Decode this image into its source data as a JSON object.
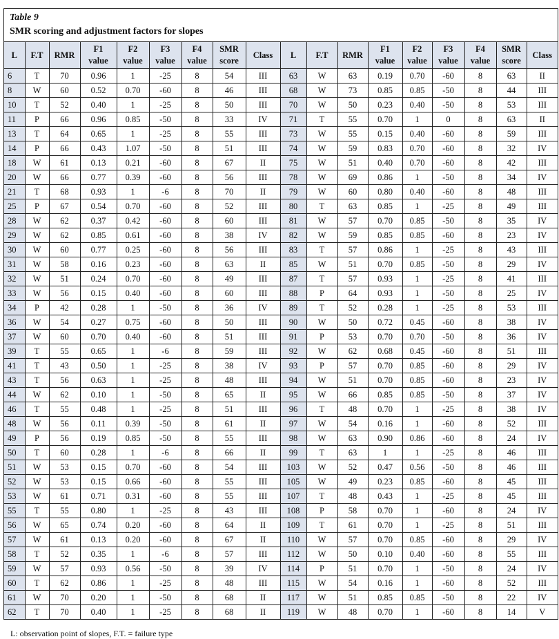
{
  "table": {
    "label": "Table 9",
    "caption": "SMR scoring and adjustment factors for slopes",
    "headers": [
      [
        "L"
      ],
      [
        "F.T"
      ],
      [
        "RMR"
      ],
      [
        "F1",
        "value"
      ],
      [
        "F2",
        "value"
      ],
      [
        "F3",
        "value"
      ],
      [
        "F4",
        "value"
      ],
      [
        "SMR",
        "score"
      ],
      [
        "Class"
      ],
      [
        "L"
      ],
      [
        "F.T"
      ],
      [
        "RMR"
      ],
      [
        "F1",
        "value"
      ],
      [
        "F2",
        "value"
      ],
      [
        "F3",
        "value"
      ],
      [
        "F4",
        "value"
      ],
      [
        "SMR",
        "score"
      ],
      [
        "Class"
      ]
    ],
    "rows": [
      [
        "6",
        "T",
        "70",
        "0.96",
        "1",
        "-25",
        "8",
        "54",
        "III",
        "63",
        "W",
        "63",
        "0.19",
        "0.70",
        "-60",
        "8",
        "63",
        "II"
      ],
      [
        "8",
        "W",
        "60",
        "0.52",
        "0.70",
        "-60",
        "8",
        "46",
        "III",
        "68",
        "W",
        "73",
        "0.85",
        "0.85",
        "-50",
        "8",
        "44",
        "III"
      ],
      [
        "10",
        "T",
        "52",
        "0.40",
        "1",
        "-25",
        "8",
        "50",
        "III",
        "70",
        "W",
        "50",
        "0.23",
        "0.40",
        "-50",
        "8",
        "53",
        "III"
      ],
      [
        "11",
        "P",
        "66",
        "0.96",
        "0.85",
        "-50",
        "8",
        "33",
        "IV",
        "71",
        "T",
        "55",
        "0.70",
        "1",
        "0",
        "8",
        "63",
        "II"
      ],
      [
        "13",
        "T",
        "64",
        "0.65",
        "1",
        "-25",
        "8",
        "55",
        "III",
        "73",
        "W",
        "55",
        "0.15",
        "0.40",
        "-60",
        "8",
        "59",
        "III"
      ],
      [
        "14",
        "P",
        "66",
        "0.43",
        "1.07",
        "-50",
        "8",
        "51",
        "III",
        "74",
        "W",
        "59",
        "0.83",
        "0.70",
        "-60",
        "8",
        "32",
        "IV"
      ],
      [
        "18",
        "W",
        "61",
        "0.13",
        "0.21",
        "-60",
        "8",
        "67",
        "II",
        "75",
        "W",
        "51",
        "0.40",
        "0.70",
        "-60",
        "8",
        "42",
        "III"
      ],
      [
        "20",
        "W",
        "66",
        "0.77",
        "0.39",
        "-60",
        "8",
        "56",
        "III",
        "78",
        "W",
        "69",
        "0.86",
        "1",
        "-50",
        "8",
        "34",
        "IV"
      ],
      [
        "21",
        "T",
        "68",
        "0.93",
        "1",
        "-6",
        "8",
        "70",
        "II",
        "79",
        "W",
        "60",
        "0.80",
        "0.40",
        "-60",
        "8",
        "48",
        "III"
      ],
      [
        "25",
        "P",
        "67",
        "0.54",
        "0.70",
        "-60",
        "8",
        "52",
        "III",
        "80",
        "T",
        "63",
        "0.85",
        "1",
        "-25",
        "8",
        "49",
        "III"
      ],
      [
        "28",
        "W",
        "62",
        "0.37",
        "0.42",
        "-60",
        "8",
        "60",
        "III",
        "81",
        "W",
        "57",
        "0.70",
        "0.85",
        "-50",
        "8",
        "35",
        "IV"
      ],
      [
        "29",
        "W",
        "62",
        "0.85",
        "0.61",
        "-60",
        "8",
        "38",
        "IV",
        "82",
        "W",
        "59",
        "0.85",
        "0.85",
        "-60",
        "8",
        "23",
        "IV"
      ],
      [
        "30",
        "W",
        "60",
        "0.77",
        "0.25",
        "-60",
        "8",
        "56",
        "III",
        "83",
        "T",
        "57",
        "0.86",
        "1",
        "-25",
        "8",
        "43",
        "III"
      ],
      [
        "31",
        "W",
        "58",
        "0.16",
        "0.23",
        "-60",
        "8",
        "63",
        "II",
        "85",
        "W",
        "51",
        "0.70",
        "0.85",
        "-50",
        "8",
        "29",
        "IV"
      ],
      [
        "32",
        "W",
        "51",
        "0.24",
        "0.70",
        "-60",
        "8",
        "49",
        "III",
        "87",
        "T",
        "57",
        "0.93",
        "1",
        "-25",
        "8",
        "41",
        "III"
      ],
      [
        "33",
        "W",
        "56",
        "0.15",
        "0.40",
        "-60",
        "8",
        "60",
        "III",
        "88",
        "P",
        "64",
        "0.93",
        "1",
        "-50",
        "8",
        "25",
        "IV"
      ],
      [
        "34",
        "P",
        "42",
        "0.28",
        "1",
        "-50",
        "8",
        "36",
        "IV",
        "89",
        "T",
        "52",
        "0.28",
        "1",
        "-25",
        "8",
        "53",
        "III"
      ],
      [
        "36",
        "W",
        "54",
        "0.27",
        "0.75",
        "-60",
        "8",
        "50",
        "III",
        "90",
        "W",
        "50",
        "0.72",
        "0.45",
        "-60",
        "8",
        "38",
        "IV"
      ],
      [
        "37",
        "W",
        "60",
        "0.70",
        "0.40",
        "-60",
        "8",
        "51",
        "III",
        "91",
        "P",
        "53",
        "0.70",
        "0.70",
        "-50",
        "8",
        "36",
        "IV"
      ],
      [
        "39",
        "T",
        "55",
        "0.65",
        "1",
        "-6",
        "8",
        "59",
        "III",
        "92",
        "W",
        "62",
        "0.68",
        "0.45",
        "-60",
        "8",
        "51",
        "III"
      ],
      [
        "41",
        "T",
        "43",
        "0.50",
        "1",
        "-25",
        "8",
        "38",
        "IV",
        "93",
        "P",
        "57",
        "0.70",
        "0.85",
        "-60",
        "8",
        "29",
        "IV"
      ],
      [
        "43",
        "T",
        "56",
        "0.63",
        "1",
        "-25",
        "8",
        "48",
        "III",
        "94",
        "W",
        "51",
        "0.70",
        "0.85",
        "-60",
        "8",
        "23",
        "IV"
      ],
      [
        "44",
        "W",
        "62",
        "0.10",
        "1",
        "-50",
        "8",
        "65",
        "II",
        "95",
        "W",
        "66",
        "0.85",
        "0.85",
        "-50",
        "8",
        "37",
        "IV"
      ],
      [
        "46",
        "T",
        "55",
        "0.48",
        "1",
        "-25",
        "8",
        "51",
        "III",
        "96",
        "T",
        "48",
        "0.70",
        "1",
        "-25",
        "8",
        "38",
        "IV"
      ],
      [
        "48",
        "W",
        "56",
        "0.11",
        "0.39",
        "-50",
        "8",
        "61",
        "II",
        "97",
        "W",
        "54",
        "0.16",
        "1",
        "-60",
        "8",
        "52",
        "III"
      ],
      [
        "49",
        "P",
        "56",
        "0.19",
        "0.85",
        "-50",
        "8",
        "55",
        "III",
        "98",
        "W",
        "63",
        "0.90",
        "0.86",
        "-60",
        "8",
        "24",
        "IV"
      ],
      [
        "50",
        "T",
        "60",
        "0.28",
        "1",
        "-6",
        "8",
        "66",
        "II",
        "99",
        "T",
        "63",
        "1",
        "1",
        "-25",
        "8",
        "46",
        "III"
      ],
      [
        "51",
        "W",
        "53",
        "0.15",
        "0.70",
        "-60",
        "8",
        "54",
        "III",
        "103",
        "W",
        "52",
        "0.47",
        "0.56",
        "-50",
        "8",
        "46",
        "III"
      ],
      [
        "52",
        "W",
        "53",
        "0.15",
        "0.66",
        "-60",
        "8",
        "55",
        "III",
        "105",
        "W",
        "49",
        "0.23",
        "0.85",
        "-60",
        "8",
        "45",
        "III"
      ],
      [
        "53",
        "W",
        "61",
        "0.71",
        "0.31",
        "-60",
        "8",
        "55",
        "III",
        "107",
        "T",
        "48",
        "0.43",
        "1",
        "-25",
        "8",
        "45",
        "III"
      ],
      [
        "55",
        "T",
        "55",
        "0.80",
        "1",
        "-25",
        "8",
        "43",
        "III",
        "108",
        "P",
        "58",
        "0.70",
        "1",
        "-60",
        "8",
        "24",
        "IV"
      ],
      [
        "56",
        "W",
        "65",
        "0.74",
        "0.20",
        "-60",
        "8",
        "64",
        "II",
        "109",
        "T",
        "61",
        "0.70",
        "1",
        "-25",
        "8",
        "51",
        "III"
      ],
      [
        "57",
        "W",
        "61",
        "0.13",
        "0.20",
        "-60",
        "8",
        "67",
        "II",
        "110",
        "W",
        "57",
        "0.70",
        "0.85",
        "-60",
        "8",
        "29",
        "IV"
      ],
      [
        "58",
        "T",
        "52",
        "0.35",
        "1",
        "-6",
        "8",
        "57",
        "III",
        "112",
        "W",
        "50",
        "0.10",
        "0.40",
        "-60",
        "8",
        "55",
        "III"
      ],
      [
        "59",
        "W",
        "57",
        "0.93",
        "0.56",
        "-50",
        "8",
        "39",
        "IV",
        "114",
        "P",
        "51",
        "0.70",
        "1",
        "-50",
        "8",
        "24",
        "IV"
      ],
      [
        "60",
        "T",
        "62",
        "0.86",
        "1",
        "-25",
        "8",
        "48",
        "III",
        "115",
        "W",
        "54",
        "0.16",
        "1",
        "-60",
        "8",
        "52",
        "III"
      ],
      [
        "61",
        "W",
        "70",
        "0.20",
        "1",
        "-50",
        "8",
        "68",
        "II",
        "117",
        "W",
        "51",
        "0.85",
        "0.85",
        "-50",
        "8",
        "22",
        "IV"
      ],
      [
        "62",
        "T",
        "70",
        "0.40",
        "1",
        "-25",
        "8",
        "68",
        "II",
        "119",
        "W",
        "48",
        "0.70",
        "1",
        "-60",
        "8",
        "14",
        "V"
      ]
    ],
    "note": "L: observation point of slopes, F.T. = failure type"
  },
  "colors": {
    "header_bg": "#dde3ee",
    "border": "#222222"
  }
}
